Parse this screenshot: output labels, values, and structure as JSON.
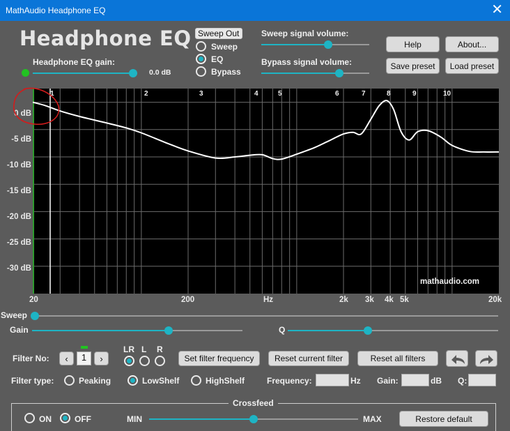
{
  "window": {
    "title": "MathAudio Headphone EQ",
    "close_glyph": "✕"
  },
  "header": {
    "app_title": "Headphone EQ",
    "gain_label": "Headphone EQ gain:",
    "gain_value": "0.0 dB",
    "gain_level": 0.96
  },
  "sweep_out": {
    "label": "Sweep Out",
    "options": [
      "Sweep",
      "EQ",
      "Bypass"
    ],
    "selected": "EQ"
  },
  "volumes": {
    "sweep_label": "Sweep signal volume:",
    "sweep_level": 0.62,
    "bypass_label": "Bypass signal volume:",
    "bypass_level": 0.72
  },
  "buttons": {
    "help": "Help",
    "about": "About...",
    "save_preset": "Save preset",
    "load_preset": "Load preset"
  },
  "graph": {
    "y_labels": [
      "0 dB",
      "-5 dB",
      "-10 dB",
      "-15 dB",
      "-20 dB",
      "-25 dB",
      "-30 dB"
    ],
    "x_labels": [
      "20",
      "200",
      "Hz",
      "2k",
      "3k",
      "4k",
      "5k",
      "20k"
    ],
    "filter_markers": [
      "1",
      "2",
      "3",
      "4",
      "5",
      "6",
      "7",
      "8",
      "9",
      "10"
    ],
    "watermark": "mathaudio.com",
    "curve_color": "#ffffff",
    "background_color": "#000000",
    "grid_color": "#6b6b6b"
  },
  "chart_data": {
    "type": "line",
    "x_scale": "log",
    "xlim": [
      20,
      20000
    ],
    "ylim": [
      -35,
      2.5
    ],
    "xlabel": "Hz",
    "x": [
      20,
      24,
      30,
      40,
      60,
      80,
      100,
      150,
      200,
      300,
      400,
      500,
      600,
      700,
      800,
      1000,
      1300,
      1600,
      2000,
      2300,
      2600,
      3000,
      3400,
      3800,
      4200,
      4700,
      5300,
      6000,
      7000,
      8500,
      10000,
      13000,
      16000,
      20000
    ],
    "y": [
      0,
      -0.6,
      -1.6,
      -2.6,
      -3.8,
      -4.7,
      -5.6,
      -7.6,
      -8.9,
      -10.2,
      -10.0,
      -9.7,
      -9.6,
      -10.3,
      -10.4,
      -9.5,
      -8.3,
      -7.1,
      -5.8,
      -5.5,
      -5.8,
      -3.1,
      -0.6,
      0.3,
      -1.3,
      -5.4,
      -6.9,
      -5.4,
      -5.2,
      -6.4,
      -7.9,
      -9.0,
      -9.1,
      -9.1
    ]
  },
  "controls": {
    "sweep_label": "Sweep",
    "sweep_level": 0.0,
    "gain_label": "Gain",
    "gain_level": 0.65,
    "q_label": "Q",
    "q_level": 0.38
  },
  "filter": {
    "number_label": "Filter No:",
    "number_value": "1",
    "channels": [
      "LR",
      "L",
      "R"
    ],
    "channel_selected": "LR",
    "set_freq": "Set filter frequency",
    "reset_current": "Reset current filter",
    "reset_all": "Reset all filters",
    "type_label": "Filter type:",
    "types": [
      "Peaking",
      "LowShelf",
      "HighShelf"
    ],
    "type_selected": "LowShelf",
    "frequency_label": "Frequency:",
    "frequency_value": "",
    "hz_unit": "Hz",
    "gain_label": "Gain:",
    "gain_value": "",
    "db_unit": "dB",
    "q_label": "Q:",
    "q_value": ""
  },
  "crossfeed": {
    "title": "Crossfeed",
    "on": "ON",
    "off": "OFF",
    "selected": "OFF",
    "min": "MIN",
    "max": "MAX",
    "level": 0.5,
    "restore": "Restore default"
  }
}
